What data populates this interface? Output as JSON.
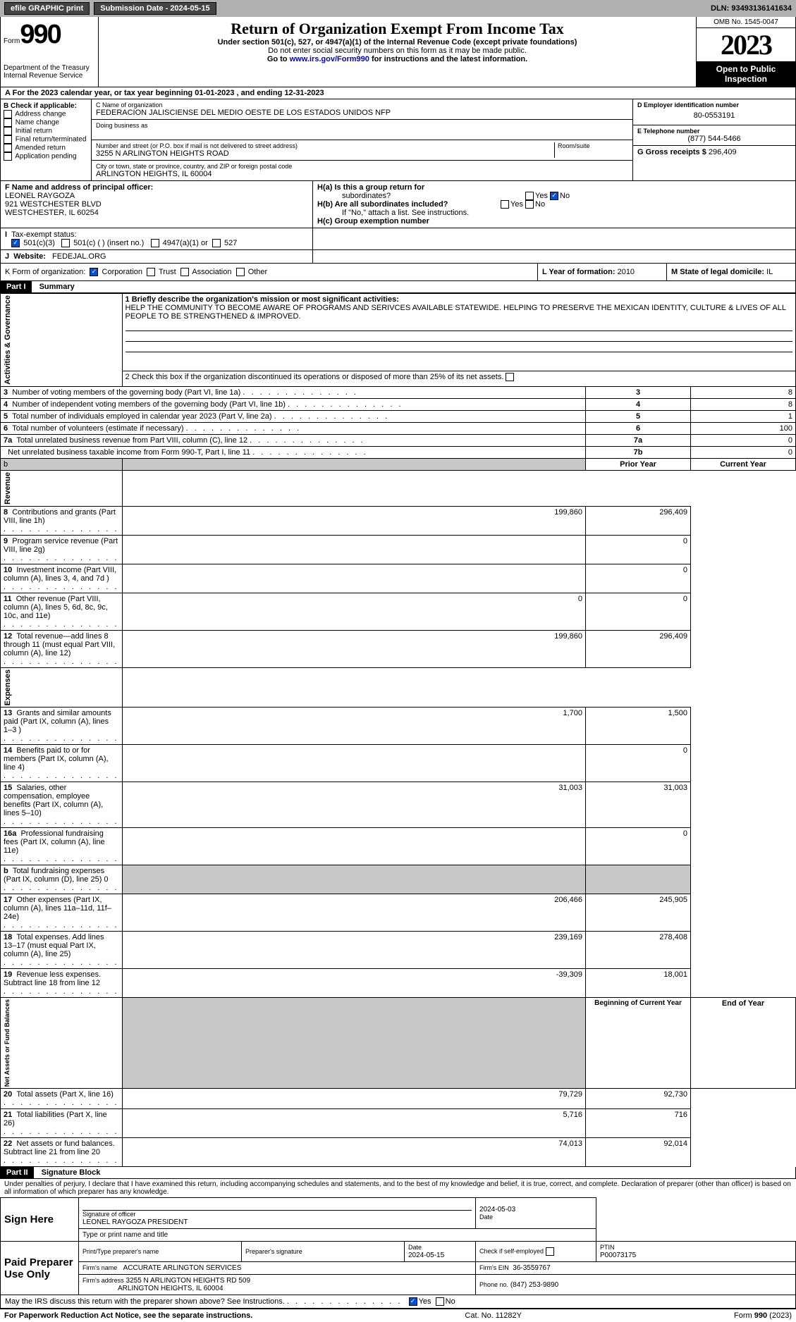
{
  "topbar": {
    "efile": "efile GRAPHIC print",
    "submission": "Submission Date - 2024-05-15",
    "dln": "DLN: 93493136141634"
  },
  "header": {
    "form_label": "Form",
    "form_no": "990",
    "dept": "Department of the Treasury\nInternal Revenue Service",
    "title": "Return of Organization Exempt From Income Tax",
    "sub1": "Under section 501(c), 527, or 4947(a)(1) of the Internal Revenue Code (except private foundations)",
    "sub2": "Do not enter social security numbers on this form as it may be made public.",
    "sub3_pre": "Go to ",
    "sub3_link": "www.irs.gov/Form990",
    "sub3_post": " for instructions and the latest information.",
    "omb": "OMB No. 1545-0047",
    "year": "2023",
    "inspect1": "Open to Public",
    "inspect2": "Inspection"
  },
  "periodA": "For the 2023 calendar year, or tax year beginning 01-01-2023   , and ending 12-31-2023",
  "boxB": {
    "label": "B Check if applicable:",
    "items": [
      "Address change",
      "Name change",
      "Initial return",
      "Final return/terminated",
      "Amended return",
      "Application pending"
    ]
  },
  "boxC": {
    "name_label": "C Name of organization",
    "name": "FEDERACION JALISCIENSE DEL MEDIO OESTE DE LOS ESTADOS UNIDOS NFP",
    "dba_label": "Doing business as",
    "street_label": "Number and street (or P.O. box if mail is not delivered to street address)",
    "room_label": "Room/suite",
    "street": "3255 N ARLINGTON HEIGHTS ROAD",
    "city_label": "City or town, state or province, country, and ZIP or foreign postal code",
    "city": "ARLINGTON HEIGHTS, IL  60004"
  },
  "boxD": {
    "label": "D Employer identification number",
    "value": "80-0553191"
  },
  "boxE": {
    "label": "E Telephone number",
    "value": "(877) 544-5466"
  },
  "boxG": {
    "label": "G Gross receipts $",
    "value": "296,409"
  },
  "boxF": {
    "label": "F  Name and address of principal officer:",
    "l1": "LEONEL RAYGOZA",
    "l2": "921 WESTCHESTER BLVD",
    "l3": "WESTCHESTER, IL  60254"
  },
  "boxH": {
    "a": "H(a)  Is this a group return for",
    "a2": "subordinates?",
    "b": "H(b)  Are all subordinates included?",
    "bnote": "If \"No,\" attach a list. See instructions.",
    "c": "H(c)  Group exemption number",
    "yes": "Yes",
    "no": "No"
  },
  "boxI": {
    "label": "Tax-exempt status:",
    "o1": "501(c)(3)",
    "o2": "501(c) (  ) (insert no.)",
    "o3": "4947(a)(1) or",
    "o4": "527"
  },
  "boxJ": {
    "label": "Website:",
    "value": "FEDEJAL.ORG"
  },
  "boxK": {
    "label": "K Form of organization:",
    "o1": "Corporation",
    "o2": "Trust",
    "o3": "Association",
    "o4": "Other"
  },
  "boxL": {
    "label": "L Year of formation:",
    "value": "2010"
  },
  "boxM": {
    "label": "M State of legal domicile:",
    "value": "IL"
  },
  "part1": {
    "bar": "Part I",
    "title": "Summary",
    "q1_label": "1  Briefly describe the organization's mission or most significant activities:",
    "q1_text": "HELP THE COMMUNITY TO BECOME AWARE OF PROGRAMS AND SERIVCES AVAILABLE STATEWIDE. HELPING TO PRESERVE THE MEXICAN IDENTITY, CULTURE & LIVES OF ALL PEOPLE TO BE STRENGTHENED & IMPROVED.",
    "q2": "2  Check this box        if the organization discontinued its operations or disposed of more than 25% of its net assets.",
    "side_ag": "Activities & Governance",
    "side_rev": "Revenue",
    "side_exp": "Expenses",
    "side_na": "Net Assets or\nFund Balances",
    "col_prior": "Prior Year",
    "col_curr": "Current Year",
    "col_beg": "Beginning of Current Year",
    "col_end": "End of Year",
    "rows_ag": [
      {
        "n": "3",
        "t": "Number of voting members of the governing body (Part VI, line 1a)",
        "b": "3",
        "v": "8"
      },
      {
        "n": "4",
        "t": "Number of independent voting members of the governing body (Part VI, line 1b)",
        "b": "4",
        "v": "8"
      },
      {
        "n": "5",
        "t": "Total number of individuals employed in calendar year 2023 (Part V, line 2a)",
        "b": "5",
        "v": "1"
      },
      {
        "n": "6",
        "t": "Total number of volunteers (estimate if necessary)",
        "b": "6",
        "v": "100"
      },
      {
        "n": "7a",
        "t": "Total unrelated business revenue from Part VIII, column (C), line 12",
        "b": "7a",
        "v": "0"
      },
      {
        "n": "",
        "t": "Net unrelated business taxable income from Form 990-T, Part I, line 11",
        "b": "7b",
        "v": "0"
      }
    ],
    "rows_rev": [
      {
        "n": "8",
        "t": "Contributions and grants (Part VIII, line 1h)",
        "p": "199,860",
        "c": "296,409"
      },
      {
        "n": "9",
        "t": "Program service revenue (Part VIII, line 2g)",
        "p": "",
        "c": "0"
      },
      {
        "n": "10",
        "t": "Investment income (Part VIII, column (A), lines 3, 4, and 7d )",
        "p": "",
        "c": "0"
      },
      {
        "n": "11",
        "t": "Other revenue (Part VIII, column (A), lines 5, 6d, 8c, 9c, 10c, and 11e)",
        "p": "0",
        "c": "0"
      },
      {
        "n": "12",
        "t": "Total revenue—add lines 8 through 11 (must equal Part VIII, column (A), line 12)",
        "p": "199,860",
        "c": "296,409"
      }
    ],
    "rows_exp": [
      {
        "n": "13",
        "t": "Grants and similar amounts paid (Part IX, column (A), lines 1–3 )",
        "p": "1,700",
        "c": "1,500"
      },
      {
        "n": "14",
        "t": "Benefits paid to or for members (Part IX, column (A), line 4)",
        "p": "",
        "c": "0"
      },
      {
        "n": "15",
        "t": "Salaries, other compensation, employee benefits (Part IX, column (A), lines 5–10)",
        "p": "31,003",
        "c": "31,003"
      },
      {
        "n": "16a",
        "t": "Professional fundraising fees (Part IX, column (A), line 11e)",
        "p": "",
        "c": "0"
      },
      {
        "n": "b",
        "t": "Total fundraising expenses (Part IX, column (D), line 25) 0",
        "p": "SHADE",
        "c": "SHADE"
      },
      {
        "n": "17",
        "t": "Other expenses (Part IX, column (A), lines 11a–11d, 11f–24e)",
        "p": "206,466",
        "c": "245,905"
      },
      {
        "n": "18",
        "t": "Total expenses. Add lines 13–17 (must equal Part IX, column (A), line 25)",
        "p": "239,169",
        "c": "278,408"
      },
      {
        "n": "19",
        "t": "Revenue less expenses. Subtract line 18 from line 12",
        "p": "-39,309",
        "c": "18,001"
      }
    ],
    "rows_na": [
      {
        "n": "20",
        "t": "Total assets (Part X, line 16)",
        "p": "79,729",
        "c": "92,730"
      },
      {
        "n": "21",
        "t": "Total liabilities (Part X, line 26)",
        "p": "5,716",
        "c": "716"
      },
      {
        "n": "22",
        "t": "Net assets or fund balances. Subtract line 21 from line 20",
        "p": "74,013",
        "c": "92,014"
      }
    ]
  },
  "part2": {
    "bar": "Part II",
    "title": "Signature Block",
    "decl": "Under penalties of perjury, I declare that I have examined this return, including accompanying schedules and statements, and to the best of my knowledge and belief, it is true, correct, and complete. Declaration of preparer (other than officer) is based on all information of which preparer has any knowledge.",
    "sign_here": "Sign Here",
    "sig_officer": "Signature of officer",
    "sig_date": "Date",
    "sig_date_v": "2024-05-03",
    "officer": "LEONEL RAYGOZA  PRESIDENT",
    "type_name": "Type or print name and title",
    "paid": "Paid Preparer Use Only",
    "prep_name_l": "Print/Type preparer's name",
    "prep_sig_l": "Preparer's signature",
    "prep_date_l": "Date",
    "prep_date_v": "2024-05-15",
    "check_self": "Check        if self-employed",
    "ptin_l": "PTIN",
    "ptin_v": "P00073175",
    "firm_name_l": "Firm's name",
    "firm_name_v": "ACCURATE ARLINGTON SERVICES",
    "firm_ein_l": "Firm's EIN",
    "firm_ein_v": "36-3559767",
    "firm_addr_l": "Firm's address",
    "firm_addr_v": "3255 N ARLINGTON HEIGHTS RD 509",
    "firm_addr_v2": "ARLINGTON HEIGHTS, IL  60004",
    "phone_l": "Phone no.",
    "phone_v": "(847) 253-9890",
    "discuss": "May the IRS discuss this return with the preparer shown above? See Instructions.",
    "yes": "Yes",
    "no": "No"
  },
  "footer": {
    "pra": "For Paperwork Reduction Act Notice, see the separate instructions.",
    "cat": "Cat. No. 11282Y",
    "form": "Form 990 (2023)"
  }
}
